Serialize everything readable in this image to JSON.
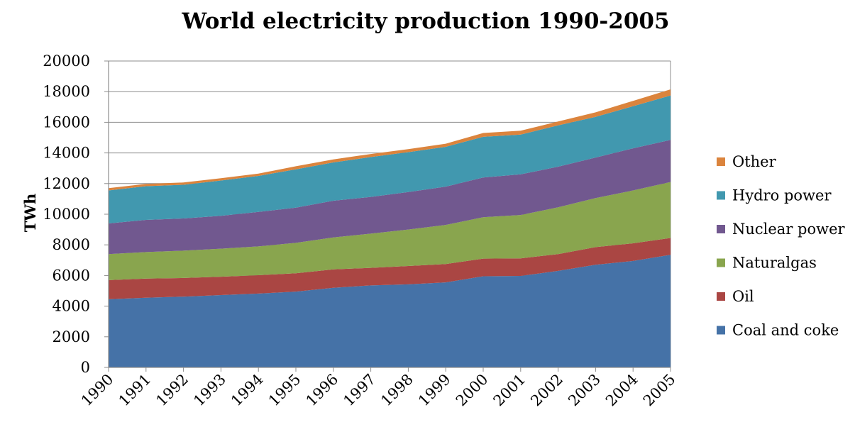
{
  "chart_data": {
    "type": "area",
    "stacked": true,
    "title": "World electricity production 1990-2005",
    "xlabel": "",
    "ylabel": "TWh",
    "ylim": [
      0,
      20000
    ],
    "yticks": [
      0,
      2000,
      4000,
      6000,
      8000,
      10000,
      12000,
      14000,
      16000,
      18000,
      20000
    ],
    "categories": [
      "1990",
      "1991",
      "1992",
      "1993",
      "1994",
      "1995",
      "1996",
      "1997",
      "1998",
      "1999",
      "2000",
      "2001",
      "2002",
      "2003",
      "2004",
      "2005"
    ],
    "grid": "horizontal",
    "legend": "right",
    "series": [
      {
        "name": "Coal and coke",
        "color": "#4572a7",
        "values": [
          4450,
          4550,
          4620,
          4720,
          4820,
          4950,
          5200,
          5350,
          5420,
          5550,
          5950,
          5970,
          6300,
          6700,
          6950,
          7350
        ]
      },
      {
        "name": "Oil",
        "color": "#aa4643",
        "values": [
          1250,
          1250,
          1220,
          1200,
          1200,
          1200,
          1200,
          1150,
          1200,
          1200,
          1150,
          1150,
          1100,
          1150,
          1150,
          1100
        ]
      },
      {
        "name": "Naturalgas",
        "color": "#89a54e",
        "values": [
          1700,
          1730,
          1780,
          1830,
          1880,
          1980,
          2080,
          2230,
          2380,
          2550,
          2700,
          2830,
          3050,
          3200,
          3450,
          3650
        ]
      },
      {
        "name": "Nuclear power",
        "color": "#71588f",
        "values": [
          2000,
          2100,
          2100,
          2150,
          2250,
          2300,
          2400,
          2400,
          2450,
          2500,
          2600,
          2650,
          2650,
          2650,
          2750,
          2750
        ]
      },
      {
        "name": "Hydro power",
        "color": "#4198af",
        "values": [
          2150,
          2200,
          2200,
          2300,
          2350,
          2500,
          2500,
          2600,
          2600,
          2600,
          2650,
          2600,
          2700,
          2650,
          2750,
          2900
        ]
      },
      {
        "name": "Other",
        "color": "#db843d",
        "values": [
          150,
          150,
          150,
          150,
          150,
          200,
          200,
          200,
          200,
          200,
          250,
          250,
          250,
          300,
          350,
          400
        ]
      }
    ]
  }
}
